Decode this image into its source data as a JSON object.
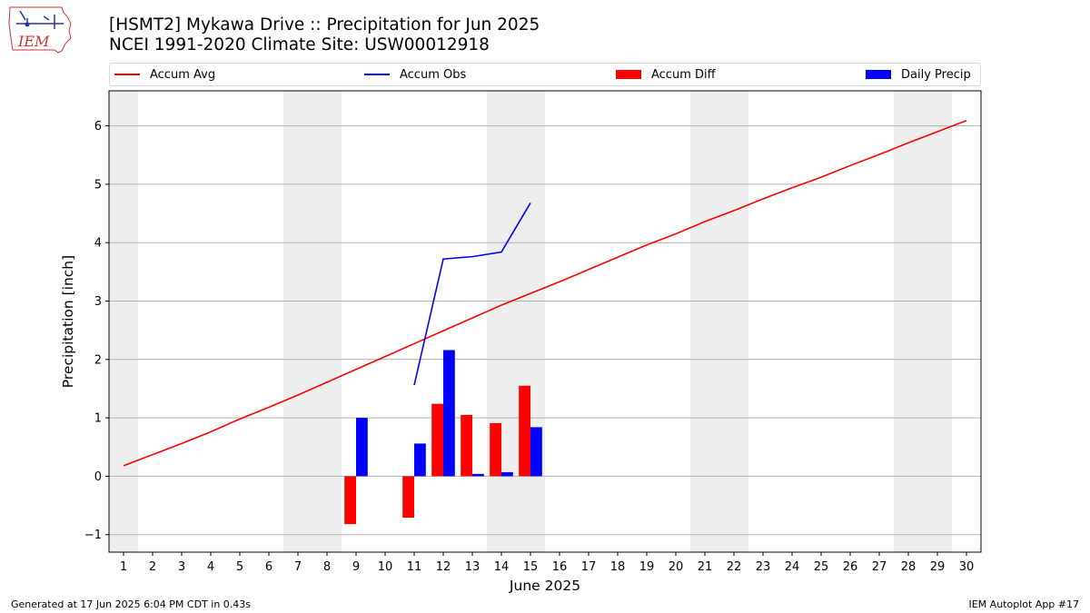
{
  "header": {
    "title_line1": "[HSMT2] Mykawa Drive :: Precipitation for Jun 2025",
    "title_line2": "NCEI 1991-2020 Climate Site: USW00012918",
    "logo_text": "IEM"
  },
  "footer": {
    "generated": "Generated at 17 Jun 2025 6:04 PM CDT in 0.43s",
    "app": "IEM Autoplot App #17"
  },
  "legend": {
    "accum_avg": "Accum Avg",
    "accum_obs": "Accum Obs",
    "accum_diff": "Accum Diff",
    "daily_precip": "Daily Precip"
  },
  "colors": {
    "accum_avg": "#ff0000",
    "accum_obs": "#0000ff",
    "accum_diff": "#ff0000",
    "daily_precip": "#0000ff",
    "weekend_band": "#eeeeee",
    "grid": "#b0b0b0"
  },
  "chart_data": {
    "type": "bar",
    "xlabel": "June 2025",
    "ylabel": "Precipitation [inch]",
    "xlim": [
      0.5,
      30.5
    ],
    "ylim": [
      -1.3,
      6.6
    ],
    "x_ticks": [
      1,
      2,
      3,
      4,
      5,
      6,
      7,
      8,
      9,
      10,
      11,
      12,
      13,
      14,
      15,
      16,
      17,
      18,
      19,
      20,
      21,
      22,
      23,
      24,
      25,
      26,
      27,
      28,
      29,
      30
    ],
    "y_ticks": [
      -1,
      0,
      1,
      2,
      3,
      4,
      5,
      6
    ],
    "y_grid": true,
    "legend_position": "top",
    "weekend_days": [
      1,
      7,
      8,
      14,
      15,
      21,
      22,
      28,
      29
    ],
    "accum_avg": {
      "x": [
        1,
        2,
        3,
        4,
        5,
        6,
        7,
        8,
        9,
        10,
        11,
        12,
        13,
        14,
        15,
        16,
        17,
        18,
        19,
        20,
        21,
        22,
        23,
        24,
        25,
        26,
        27,
        28,
        29,
        30
      ],
      "y": [
        0.18,
        0.37,
        0.56,
        0.76,
        0.98,
        1.18,
        1.39,
        1.61,
        1.83,
        2.05,
        2.27,
        2.49,
        2.71,
        2.93,
        3.13,
        3.33,
        3.54,
        3.75,
        3.96,
        4.15,
        4.36,
        4.55,
        4.75,
        4.94,
        5.12,
        5.32,
        5.51,
        5.71,
        5.9,
        6.09
      ]
    },
    "accum_obs": {
      "x": [
        11,
        12,
        13,
        14,
        15
      ],
      "y": [
        1.56,
        3.72,
        3.76,
        3.84,
        4.68
      ]
    },
    "accum_diff": {
      "x": [
        9,
        11,
        12,
        13,
        14,
        15
      ],
      "y": [
        -0.82,
        -0.71,
        1.24,
        1.05,
        0.91,
        1.55
      ]
    },
    "daily_precip": {
      "x": [
        9,
        11,
        12,
        13,
        14,
        15
      ],
      "y": [
        1.0,
        0.56,
        2.16,
        0.04,
        0.07,
        0.84
      ]
    }
  }
}
